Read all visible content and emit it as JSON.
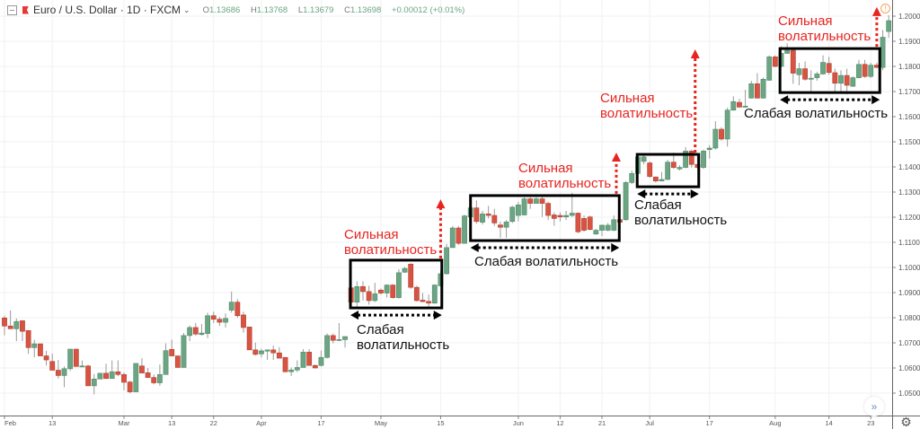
{
  "header": {
    "symbol_title": "Euro / U.S. Dollar · 1D · FXCM",
    "open_label": "O",
    "open": "1.13686",
    "high_label": "H",
    "high": "1.13768",
    "low_label": "L",
    "low": "1.13679",
    "close_label": "C",
    "close": "1.13698",
    "change": "+0.00012 (+0.01%)",
    "icons": [
      "collapse-icon",
      "flag-icon",
      "chevron-down-icon"
    ]
  },
  "colors": {
    "up": "#6ba583",
    "down": "#d75442",
    "annotation_red": "#e8241f",
    "box": "#000000",
    "grid": "#eff1f3"
  },
  "annotations": [
    {
      "strong": [
        "Сильная",
        "волатильность"
      ],
      "weak": [
        "Слабая",
        "волатильность"
      ],
      "box": {
        "bars": [
          57.9,
          73.2
        ],
        "prices": [
          1.0839,
          1.1029
        ]
      },
      "arrow_bar": 73.0,
      "arrow_to": 1.1271
    },
    {
      "strong": [
        "Сильная",
        "волатильность"
      ],
      "weak": [
        "Слабая волатильность"
      ],
      "box": {
        "bars": [
          78.0,
          102.9
        ],
        "prices": [
          1.1107,
          1.1286
        ]
      },
      "arrow_bar": 102.4,
      "arrow_to": 1.1457
    },
    {
      "strong": [
        "Сильная",
        "волатильность"
      ],
      "weak": [
        "Слабая",
        "волатильность"
      ],
      "box": {
        "bars": [
          105.9,
          116.2
        ],
        "prices": [
          1.1321,
          1.145
        ]
      },
      "arrow_bar": 115.6,
      "arrow_to": 1.1868
    },
    {
      "strong": [
        "Сильная",
        "волатильность"
      ],
      "weak": [
        "Слабая волатильность"
      ],
      "box": {
        "bars": [
          129.8,
          146.5
        ],
        "prices": [
          1.1696,
          1.1871
        ]
      },
      "arrow_bar": 146.0,
      "arrow_to": 1.2036
    }
  ],
  "controls": {
    "scroll_icon": "double-chevron-right-icon",
    "settings_icon": "gear-icon",
    "alert_icon": "alert-icon"
  },
  "chart_data": {
    "type": "candlestick",
    "ohlc_order": [
      "open",
      "high",
      "low",
      "close"
    ],
    "ylim": [
      1.0443,
      1.2064
    ],
    "grid": true,
    "y_ticks": [
      "1.05000",
      "1.06000",
      "1.07000",
      "1.08000",
      "1.09000",
      "1.10000",
      "1.11000",
      "1.12000",
      "1.13000",
      "1.14000",
      "1.15000",
      "1.16000",
      "1.17000",
      "1.18000",
      "1.19000",
      "1.20000"
    ],
    "x_ticks": [
      {
        "label": "Feb",
        "bar": 0
      },
      {
        "label": "13",
        "bar": 8
      },
      {
        "label": "Mar",
        "bar": 20
      },
      {
        "label": "13",
        "bar": 28
      },
      {
        "label": "22",
        "bar": 35
      },
      {
        "label": "Apr",
        "bar": 43
      },
      {
        "label": "17",
        "bar": 53
      },
      {
        "label": "May",
        "bar": 63
      },
      {
        "label": "15",
        "bar": 73
      },
      {
        "label": "Jun",
        "bar": 86
      },
      {
        "label": "12",
        "bar": 93
      },
      {
        "label": "21",
        "bar": 100
      },
      {
        "label": "Jul",
        "bar": 108
      },
      {
        "label": "17",
        "bar": 118
      },
      {
        "label": "Aug",
        "bar": 129
      },
      {
        "label": "14",
        "bar": 138
      },
      {
        "label": "23",
        "bar": 145
      }
    ],
    "candles": [
      [
        1.0799,
        1.0808,
        1.073,
        1.0767
      ],
      [
        1.0767,
        1.0829,
        1.0756,
        1.0756
      ],
      [
        1.0756,
        1.0797,
        1.0707,
        1.0785
      ],
      [
        1.0788,
        1.0788,
        1.0707,
        1.0746
      ],
      [
        1.0749,
        1.0749,
        1.0656,
        1.0681
      ],
      [
        1.0681,
        1.0712,
        1.0642,
        1.0696
      ],
      [
        1.0696,
        1.0696,
        1.0648,
        1.0648
      ],
      [
        1.0648,
        1.0668,
        1.061,
        1.0632
      ],
      [
        1.0626,
        1.0657,
        1.0591,
        1.0591
      ],
      [
        1.0591,
        1.0632,
        1.0558,
        1.057
      ],
      [
        1.057,
        1.0606,
        1.0523,
        1.0597
      ],
      [
        1.0597,
        1.0675,
        1.0588,
        1.0675
      ],
      [
        1.0675,
        1.0675,
        1.0606,
        1.0606
      ],
      [
        1.0604,
        1.063,
        1.0604,
        1.0608
      ],
      [
        1.0608,
        1.0612,
        1.0529,
        1.0529
      ],
      [
        1.0529,
        1.0576,
        1.0495,
        1.0556
      ],
      [
        1.0556,
        1.0579,
        1.0556,
        1.0579
      ],
      [
        1.0579,
        1.0617,
        1.0558,
        1.0558
      ],
      [
        1.0558,
        1.063,
        1.0558,
        1.0585
      ],
      [
        1.0585,
        1.063,
        1.0567,
        1.0574
      ],
      [
        1.0574,
        1.0582,
        1.0511,
        1.0543
      ],
      [
        1.0544,
        1.0549,
        1.0499,
        1.0505
      ],
      [
        1.0505,
        1.0618,
        1.0505,
        1.0618
      ],
      [
        1.0608,
        1.0639,
        1.058,
        1.058
      ],
      [
        1.0581,
        1.06,
        1.0562,
        1.0562
      ],
      [
        1.0562,
        1.0574,
        1.0535,
        1.0541
      ],
      [
        1.0541,
        1.0614,
        1.0529,
        1.0574
      ],
      [
        1.0574,
        1.0698,
        1.0574,
        1.0669
      ],
      [
        1.0674,
        1.0713,
        1.0648,
        1.0648
      ],
      [
        1.0648,
        1.0648,
        1.0602,
        1.0602
      ],
      [
        1.0602,
        1.0739,
        1.0602,
        1.0729
      ],
      [
        1.0729,
        1.0769,
        1.0707,
        1.0761
      ],
      [
        1.0761,
        1.0779,
        1.0729,
        1.0735
      ],
      [
        1.0733,
        1.0775,
        1.0729,
        1.0739
      ],
      [
        1.0737,
        1.082,
        1.0719,
        1.0808
      ],
      [
        1.0808,
        1.0824,
        1.0779,
        1.0794
      ],
      [
        1.0794,
        1.0803,
        1.0767,
        1.0782
      ],
      [
        1.0782,
        1.0817,
        1.0761,
        1.0797
      ],
      [
        1.083,
        1.0904,
        1.082,
        1.0862
      ],
      [
        1.0862,
        1.0874,
        1.08,
        1.0808
      ],
      [
        1.0811,
        1.0824,
        1.0741,
        1.0761
      ],
      [
        1.0763,
        1.0763,
        1.0672,
        1.0672
      ],
      [
        1.0672,
        1.0701,
        1.065,
        1.0654
      ],
      [
        1.0656,
        1.0677,
        1.0642,
        1.0668
      ],
      [
        1.0667,
        1.0672,
        1.0632,
        1.0672
      ],
      [
        1.0672,
        1.0689,
        1.0632,
        1.066
      ],
      [
        1.066,
        1.0683,
        1.0639,
        1.0639
      ],
      [
        1.0642,
        1.0642,
        1.0583,
        1.0585
      ],
      [
        1.0585,
        1.0602,
        1.0568,
        1.0592
      ],
      [
        1.0592,
        1.063,
        1.0583,
        1.0602
      ],
      [
        1.0602,
        1.0675,
        1.0602,
        1.0663
      ],
      [
        1.0663,
        1.0675,
        1.061,
        1.061
      ],
      [
        1.061,
        1.0614,
        1.0598,
        1.06
      ],
      [
        1.061,
        1.0669,
        1.0606,
        1.0642
      ],
      [
        1.0642,
        1.0737,
        1.0638,
        1.0729
      ],
      [
        1.0729,
        1.0737,
        1.0698,
        1.071
      ],
      [
        1.071,
        1.0779,
        1.0707,
        1.0713
      ],
      [
        1.0713,
        1.0725,
        1.0681,
        1.0725
      ],
      [
        1.0919,
        1.0927,
        1.0838,
        1.0862
      ],
      [
        1.0862,
        1.0945,
        1.0838,
        1.0924
      ],
      [
        1.0924,
        1.0945,
        1.0868,
        1.0904
      ],
      [
        1.0904,
        1.0927,
        1.0852,
        1.0868
      ],
      [
        1.0868,
        1.0939,
        1.0862,
        1.0895
      ],
      [
        1.091,
        1.0916,
        1.0892,
        1.0898
      ],
      [
        1.0898,
        1.0933,
        1.088,
        1.093
      ],
      [
        1.093,
        1.0933,
        1.0876,
        1.088
      ],
      [
        1.088,
        1.0993,
        1.0876,
        1.0979
      ],
      [
        1.0981,
        1.1002,
        1.0979,
        1.0996
      ],
      [
        1.1013,
        1.1017,
        1.0915,
        1.0921
      ],
      [
        1.0921,
        1.0927,
        1.0864,
        1.0868
      ],
      [
        1.087,
        1.0898,
        1.0862,
        1.0864
      ],
      [
        1.0865,
        1.0892,
        1.0844,
        1.0858
      ],
      [
        1.0858,
        1.0933,
        1.0856,
        1.093
      ],
      [
        1.0927,
        1.0987,
        1.0924,
        1.0975
      ],
      [
        1.0975,
        1.1094,
        1.0971,
        1.1079
      ],
      [
        1.1079,
        1.1165,
        1.1079,
        1.1157
      ],
      [
        1.1157,
        1.1165,
        1.109,
        1.1096
      ],
      [
        1.1096,
        1.121,
        1.1094,
        1.1205
      ],
      [
        1.1201,
        1.124,
        1.1195,
        1.1237
      ],
      [
        1.1237,
        1.1267,
        1.1174,
        1.1183
      ],
      [
        1.118,
        1.1225,
        1.1171,
        1.1213
      ],
      [
        1.1213,
        1.1245,
        1.1195,
        1.1207
      ],
      [
        1.1207,
        1.1233,
        1.1165,
        1.1177
      ],
      [
        1.1169,
        1.1183,
        1.1118,
        1.116
      ],
      [
        1.116,
        1.1189,
        1.1118,
        1.1181
      ],
      [
        1.1183,
        1.1245,
        1.1177,
        1.124
      ],
      [
        1.1207,
        1.1261,
        1.1183,
        1.1249
      ],
      [
        1.1209,
        1.1279,
        1.1207,
        1.1273
      ],
      [
        1.1273,
        1.1279,
        1.1233,
        1.1255
      ],
      [
        1.1255,
        1.1279,
        1.1255,
        1.1273
      ],
      [
        1.1273,
        1.1281,
        1.1201,
        1.1255
      ],
      [
        1.1255,
        1.1261,
        1.1189,
        1.1207
      ],
      [
        1.1209,
        1.1219,
        1.1166,
        1.1195
      ],
      [
        1.1207,
        1.1219,
        1.1183,
        1.1201
      ],
      [
        1.1201,
        1.1225,
        1.1189,
        1.1207
      ],
      [
        1.1207,
        1.1297,
        1.1201,
        1.1216
      ],
      [
        1.1216,
        1.1219,
        1.1136,
        1.1142
      ],
      [
        1.1195,
        1.1207,
        1.1142,
        1.1148
      ],
      [
        1.1201,
        1.1207,
        1.1148,
        1.1151
      ],
      [
        1.1133,
        1.1154,
        1.113,
        1.1148
      ],
      [
        1.1148,
        1.1171,
        1.1124,
        1.1168
      ],
      [
        1.1148,
        1.1177,
        1.1144,
        1.1168
      ],
      [
        1.1148,
        1.1207,
        1.1144,
        1.119
      ],
      [
        1.119,
        1.1195,
        1.1177,
        1.118
      ],
      [
        1.119,
        1.1344,
        1.1186,
        1.1338
      ],
      [
        1.1338,
        1.1386,
        1.1332,
        1.1374
      ],
      [
        1.1374,
        1.1445,
        1.1372,
        1.144
      ],
      [
        1.1422,
        1.1448,
        1.141,
        1.144
      ],
      [
        1.1416,
        1.1422,
        1.1356,
        1.1362
      ],
      [
        1.136,
        1.1362,
        1.1338,
        1.1344
      ],
      [
        1.1344,
        1.138,
        1.1344,
        1.135
      ],
      [
        1.135,
        1.1428,
        1.1348,
        1.1419
      ],
      [
        1.1419,
        1.1457,
        1.1392,
        1.1398
      ],
      [
        1.1392,
        1.1407,
        1.1386,
        1.1398
      ],
      [
        1.1398,
        1.1479,
        1.1395,
        1.1463
      ],
      [
        1.1463,
        1.1469,
        1.1398,
        1.141
      ],
      [
        1.141,
        1.1445,
        1.1392,
        1.1398
      ],
      [
        1.1398,
        1.1469,
        1.1392,
        1.1463
      ],
      [
        1.1469,
        1.1487,
        1.1433,
        1.1475
      ],
      [
        1.1475,
        1.1582,
        1.1469,
        1.155
      ],
      [
        1.155,
        1.1558,
        1.1505,
        1.1511
      ],
      [
        1.1511,
        1.1636,
        1.1481,
        1.1626
      ],
      [
        1.1626,
        1.1681,
        1.1624,
        1.166
      ],
      [
        1.1657,
        1.1671,
        1.1636,
        1.1638
      ],
      [
        1.1638,
        1.1707,
        1.1636,
        1.1642
      ],
      [
        1.1674,
        1.1743,
        1.1672,
        1.1731
      ],
      [
        1.1731,
        1.1773,
        1.1672,
        1.1674
      ],
      [
        1.1674,
        1.1755,
        1.1672,
        1.1749
      ],
      [
        1.1745,
        1.1844,
        1.1743,
        1.1838
      ],
      [
        1.1838,
        1.1844,
        1.1797,
        1.18
      ],
      [
        1.18,
        1.188,
        1.1797,
        1.1852
      ],
      [
        1.1852,
        1.1892,
        1.185,
        1.1864
      ],
      [
        1.1864,
        1.1874,
        1.1731,
        1.1773
      ],
      [
        1.1767,
        1.1814,
        1.1725,
        1.1791
      ],
      [
        1.1791,
        1.182,
        1.1743,
        1.1749
      ],
      [
        1.1749,
        1.1785,
        1.1701,
        1.1753
      ],
      [
        1.1755,
        1.1779,
        1.1743,
        1.177
      ],
      [
        1.177,
        1.1844,
        1.1767,
        1.1816
      ],
      [
        1.1812,
        1.1838,
        1.1767,
        1.1776
      ],
      [
        1.1775,
        1.1791,
        1.1698,
        1.1733
      ],
      [
        1.1733,
        1.1785,
        1.1701,
        1.1764
      ],
      [
        1.1764,
        1.1791,
        1.1689,
        1.1725
      ],
      [
        1.1721,
        1.1761,
        1.1719,
        1.1755
      ],
      [
        1.1755,
        1.1826,
        1.1753,
        1.1808
      ],
      [
        1.1808,
        1.1826,
        1.1755,
        1.176
      ],
      [
        1.176,
        1.1814,
        1.1755,
        1.1805
      ],
      [
        1.1805,
        1.1814,
        1.1793,
        1.1796
      ],
      [
        1.1796,
        1.1945,
        1.1785,
        1.1916
      ],
      [
        1.1939,
        1.2004,
        1.1914,
        1.1982
      ]
    ]
  }
}
